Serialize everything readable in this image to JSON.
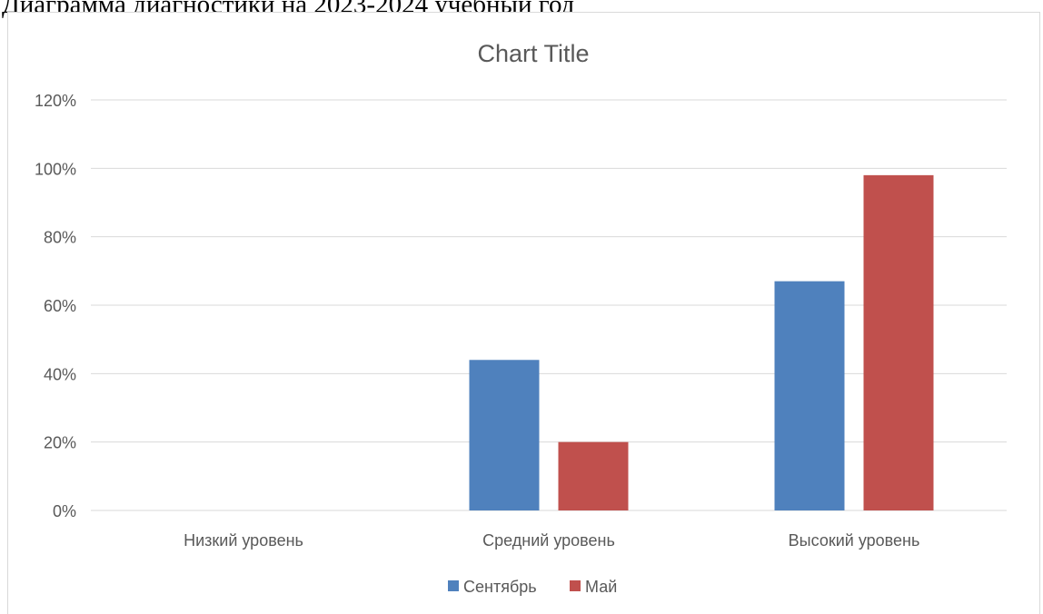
{
  "document": {
    "heading": "Диаграмма диагностики на 2023-2024 учебный год"
  },
  "chart_data": {
    "type": "bar",
    "title": "Chart Title",
    "xlabel": "",
    "ylabel": "",
    "categories": [
      "Низкий уровень",
      "Средний уровень",
      "Высокий уровень"
    ],
    "series": [
      {
        "name": "Сентябрь",
        "color": "#4f81bd",
        "values": [
          0,
          0.44,
          0.67
        ]
      },
      {
        "name": "Май",
        "color": "#c0504d",
        "values": [
          0,
          0.2,
          0.98
        ]
      }
    ],
    "ylim": [
      0,
      1.2
    ],
    "yticks": [
      0,
      0.2,
      0.4,
      0.6,
      0.8,
      1.0,
      1.2
    ],
    "ytick_labels": [
      "0%",
      "20%",
      "40%",
      "60%",
      "80%",
      "100%",
      "120%"
    ],
    "grid": true,
    "legend_position": "bottom"
  }
}
